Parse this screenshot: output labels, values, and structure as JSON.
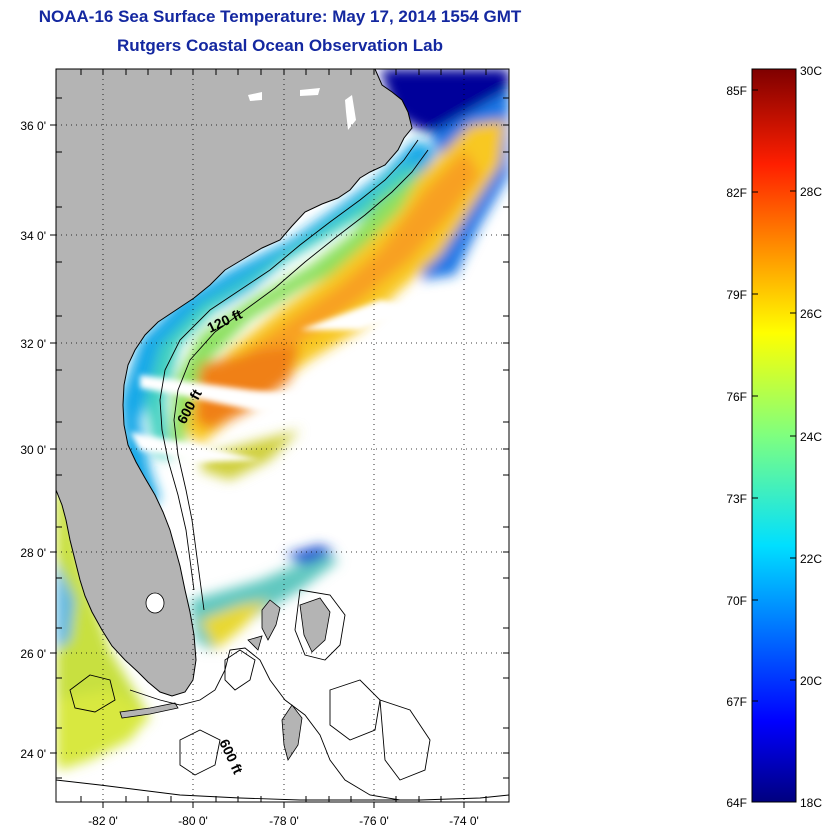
{
  "header": {
    "title": "NOAA-16 Sea Surface Temperature:  May 17, 2014 1554 GMT",
    "subtitle": "Rutgers Coastal Ocean Observation Lab"
  },
  "map": {
    "lat_ticks": [
      "36 0'",
      "34 0'",
      "32 0'",
      "30 0'",
      "28 0'",
      "26 0'",
      "24 0'"
    ],
    "lon_ticks": [
      "-82 0'",
      "-80 0'",
      "-78 0'",
      "-76 0'",
      "-74 0'"
    ],
    "contour_labels": [
      "120 ft",
      "600 ft",
      "600 ft"
    ],
    "land_color": "#b4b4b4",
    "no_data_color": "#ffffff"
  },
  "colorbar": {
    "fahrenheit_labels": [
      "85F",
      "82F",
      "79F",
      "76F",
      "73F",
      "70F",
      "67F",
      "64F"
    ],
    "celsius_labels": [
      "30C",
      "28C",
      "26C",
      "24C",
      "22C",
      "20C",
      "18C"
    ],
    "range_c": [
      18,
      30
    ],
    "colormap": "jet"
  }
}
